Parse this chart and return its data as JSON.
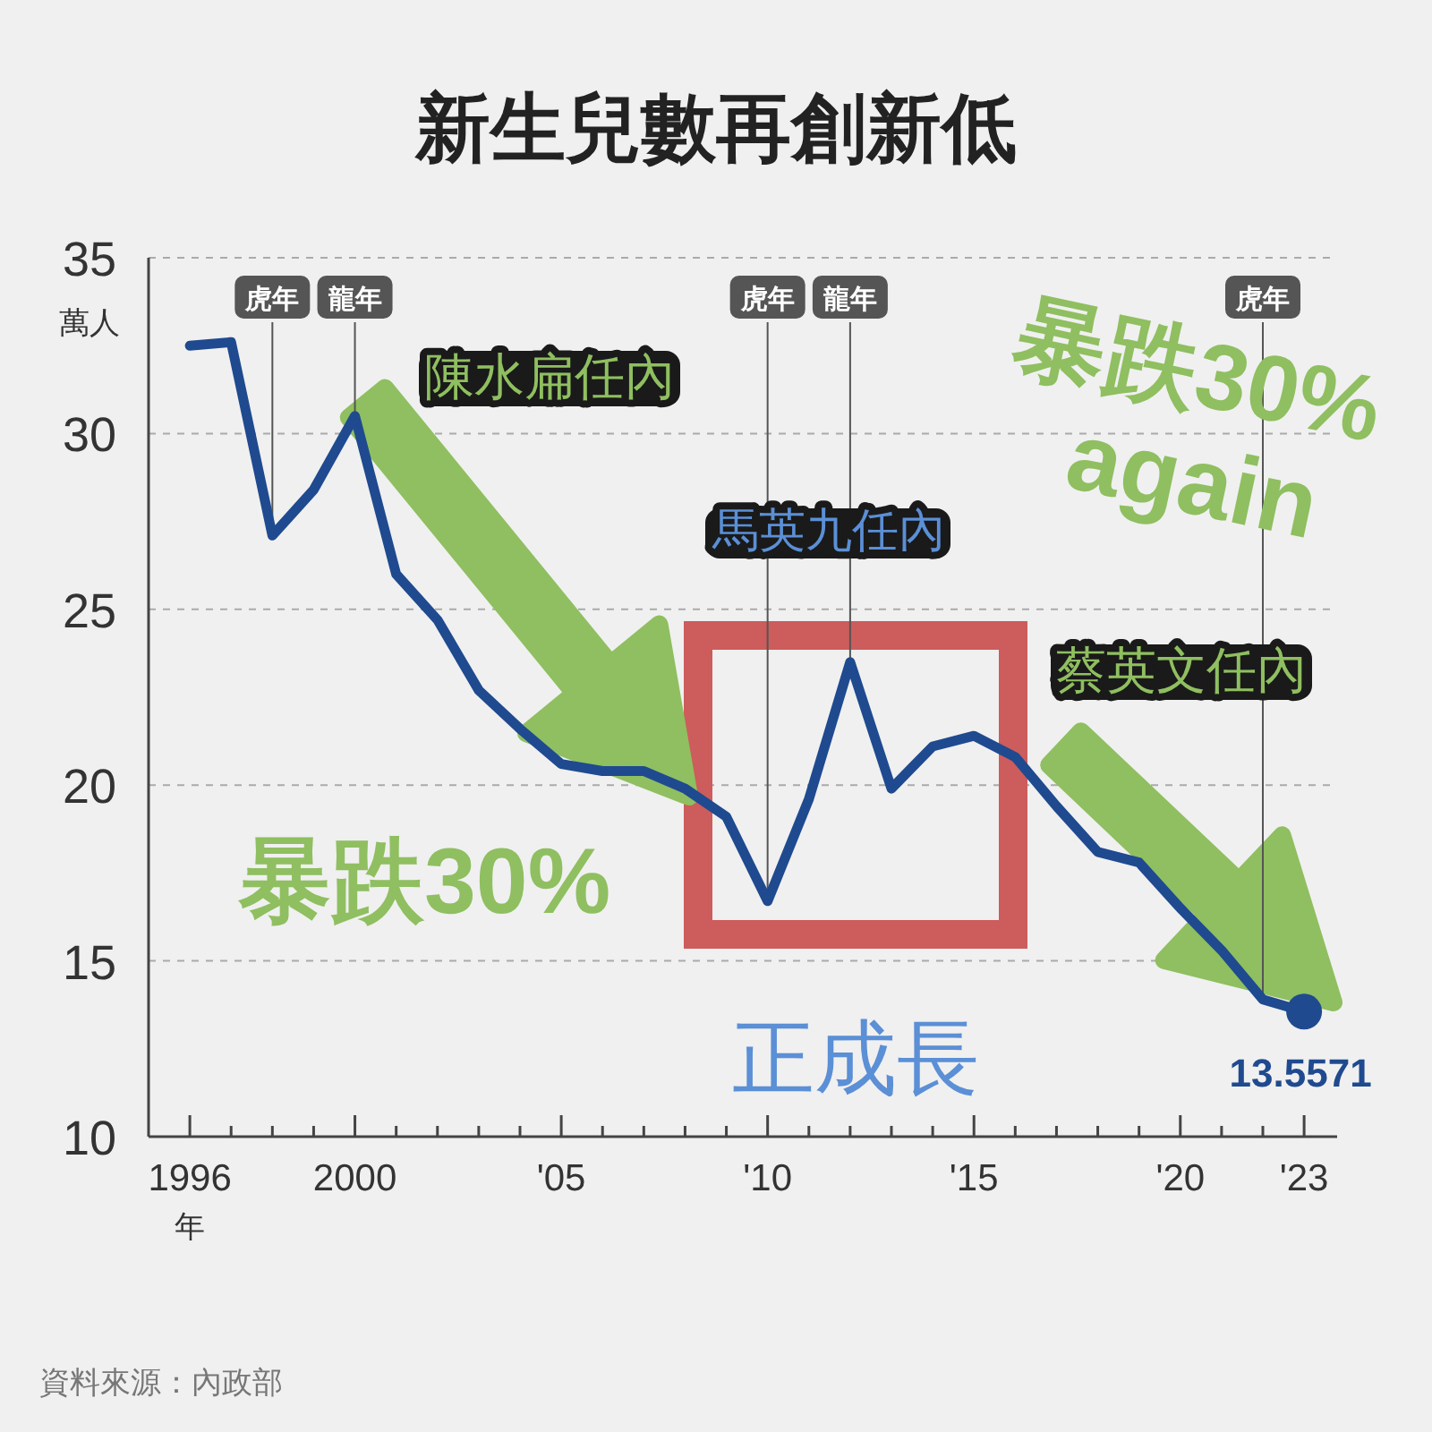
{
  "chart_data": {
    "type": "line",
    "title": "新生兒數再創新低",
    "ylabel": "萬人",
    "xlabel": "年",
    "x": [
      1996,
      1997,
      1998,
      1999,
      2000,
      2001,
      2002,
      2003,
      2004,
      2005,
      2006,
      2007,
      2008,
      2009,
      2010,
      2011,
      2012,
      2013,
      2014,
      2015,
      2016,
      2017,
      2018,
      2019,
      2020,
      2021,
      2022,
      2023
    ],
    "series": [
      {
        "color": "#1f4a8f",
        "values": [
          32.5,
          32.6,
          27.1,
          28.4,
          30.5,
          26.0,
          24.7,
          22.7,
          21.6,
          20.6,
          20.4,
          20.4,
          19.9,
          19.1,
          16.7,
          19.6,
          23.5,
          19.9,
          21.1,
          21.4,
          20.8,
          19.4,
          18.1,
          17.8,
          16.5,
          15.3,
          13.9,
          13.5571
        ],
        "value_labels": [
          null,
          null,
          null,
          null,
          null,
          null,
          null,
          null,
          null,
          null,
          null,
          null,
          null,
          null,
          null,
          null,
          null,
          null,
          null,
          null,
          null,
          null,
          null,
          null,
          null,
          null,
          null,
          "13.5571"
        ]
      },
      {
        "type": "scatter",
        "color": "#1f4a8f",
        "x": [
          2023
        ],
        "values": [
          13.5571
        ],
        "marker": "circle"
      }
    ],
    "xlim": [
      1995,
      2023.8
    ],
    "ylim": [
      10,
      35
    ],
    "xticks": [
      {
        "value": 1996,
        "label": "1996"
      },
      {
        "value": 1997,
        "label": null
      },
      {
        "value": 1998,
        "label": null
      },
      {
        "value": 1999,
        "label": null
      },
      {
        "value": 2000,
        "label": "2000"
      },
      {
        "value": 2001,
        "label": null
      },
      {
        "value": 2002,
        "label": null
      },
      {
        "value": 2003,
        "label": null
      },
      {
        "value": 2004,
        "label": null
      },
      {
        "value": 2005,
        "label": "'05"
      },
      {
        "value": 2006,
        "label": null
      },
      {
        "value": 2007,
        "label": null
      },
      {
        "value": 2008,
        "label": null
      },
      {
        "value": 2009,
        "label": null
      },
      {
        "value": 2010,
        "label": "'10"
      },
      {
        "value": 2011,
        "label": null
      },
      {
        "value": 2012,
        "label": null
      },
      {
        "value": 2013,
        "label": null
      },
      {
        "value": 2014,
        "label": null
      },
      {
        "value": 2015,
        "label": "'15"
      },
      {
        "value": 2016,
        "label": null
      },
      {
        "value": 2017,
        "label": null
      },
      {
        "value": 2018,
        "label": null
      },
      {
        "value": 2019,
        "label": null
      },
      {
        "value": 2020,
        "label": "'20"
      },
      {
        "value": 2021,
        "label": null
      },
      {
        "value": 2022,
        "label": null
      },
      {
        "value": 2023,
        "label": "'23"
      }
    ],
    "yticks": [
      10,
      15,
      20,
      25,
      30,
      35
    ],
    "grid": "y",
    "line_style": "solid",
    "marker": "none",
    "ref_lines": [
      {
        "axis": "x",
        "value": 1998,
        "label": "虎年",
        "color": "#555555"
      },
      {
        "axis": "x",
        "value": 2000,
        "label": "龍年",
        "color": "#555555"
      },
      {
        "axis": "x",
        "value": 2010,
        "label": "虎年",
        "color": "#555555"
      },
      {
        "axis": "x",
        "value": 2012,
        "label": "龍年",
        "color": "#555555"
      },
      {
        "axis": "x",
        "value": 2022,
        "label": "虎年",
        "color": "#555555"
      }
    ],
    "annotations": [
      "陳水扁任內",
      "馬英九任內",
      "蔡英文任內",
      "暴跌30%",
      "暴跌30% again",
      "正成長",
      "資料來源：內政部"
    ]
  }
}
